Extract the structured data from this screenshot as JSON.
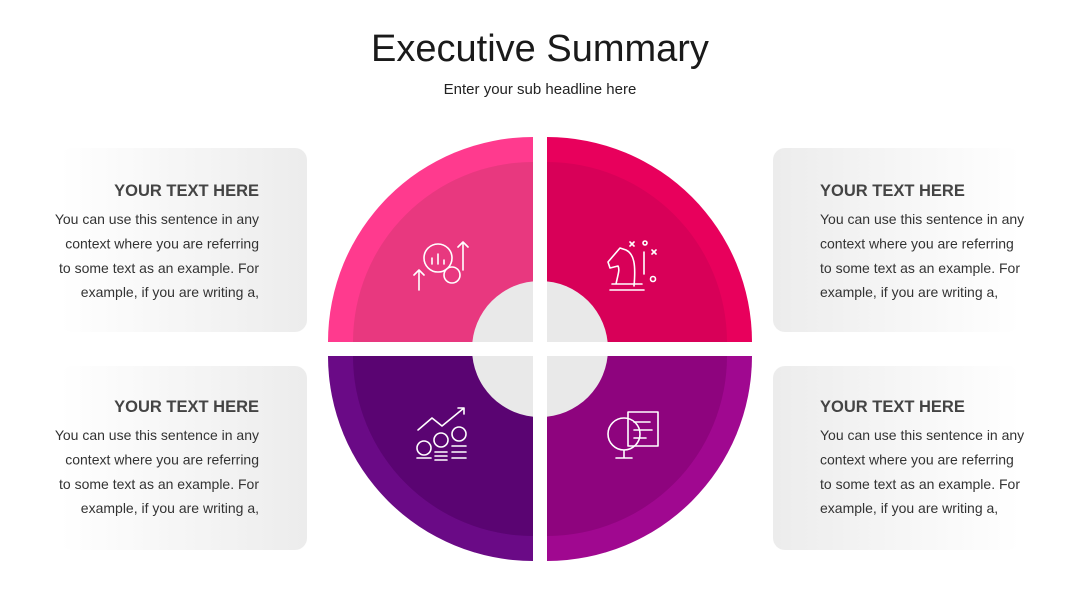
{
  "header": {
    "title": "Executive Summary",
    "subtitle": "Enter your sub headline here"
  },
  "boxes": [
    {
      "title": "YOUR TEXT HERE",
      "lines": [
        "You can use this sentence in any",
        "context where you are referring",
        "to some text as an example. For",
        "example, if you are writing a,"
      ]
    },
    {
      "title": "YOUR TEXT HERE",
      "lines": [
        "You can use this sentence in any",
        "context where you are referring",
        "to some text as an example. For",
        "example, if you are writing a,"
      ]
    },
    {
      "title": "YOUR TEXT HERE",
      "lines": [
        "You can use this sentence in any",
        "context where you are referring",
        "to some text as an example. For",
        "example, if you are writing a,"
      ]
    },
    {
      "title": "YOUR TEXT HERE",
      "lines": [
        "You can use this sentence in any",
        "context where you are referring",
        "to some text as an example. For",
        "example, if you are writing a,"
      ]
    }
  ]
}
